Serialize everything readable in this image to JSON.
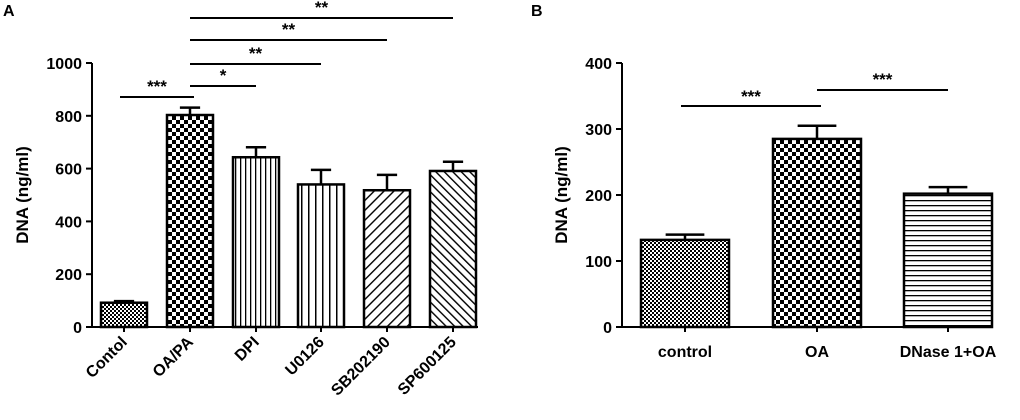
{
  "figure": {
    "panel_a_label": "A",
    "panel_b_label": "B"
  },
  "chart_data": [
    {
      "panel": "A",
      "type": "bar",
      "ylabel": "DNA (ng/ml)",
      "ylim": [
        0,
        1000
      ],
      "yticks": [
        0,
        200,
        400,
        600,
        800,
        1000
      ],
      "categories": [
        "Contol",
        "OA/PA",
        "DPI",
        "U0126",
        "SB202190",
        "SP600125"
      ],
      "values": [
        92,
        803,
        643,
        540,
        518,
        591
      ],
      "errors": [
        6,
        28,
        38,
        55,
        58,
        35
      ],
      "patterns": [
        "fine-check",
        "checker",
        "vertical-stripes",
        "vertical-stripes-wide",
        "diagonal-ne",
        "diagonal-nw"
      ],
      "xtick_rotation": "45-degrees",
      "significance": [
        {
          "from": 0,
          "to": 1,
          "label": "***"
        },
        {
          "from": 1,
          "to": 2,
          "label": "*"
        },
        {
          "from": 1,
          "to": 3,
          "label": "**"
        },
        {
          "from": 1,
          "to": 4,
          "label": "**"
        },
        {
          "from": 1,
          "to": 5,
          "label": "**"
        }
      ]
    },
    {
      "panel": "B",
      "type": "bar",
      "ylabel": "DNA (ng/ml)",
      "ylim": [
        0,
        400
      ],
      "yticks": [
        0,
        100,
        200,
        300,
        400
      ],
      "categories": [
        "control",
        "OA",
        "DNase 1+OA"
      ],
      "values": [
        132,
        285,
        202
      ],
      "errors": [
        8,
        20,
        10
      ],
      "patterns": [
        "fine-check",
        "checker",
        "horizontal-stripes"
      ],
      "xtick_rotation": "none",
      "significance": [
        {
          "from": 0,
          "to": 1,
          "label": "***"
        },
        {
          "from": 1,
          "to": 2,
          "label": "***"
        }
      ]
    }
  ]
}
